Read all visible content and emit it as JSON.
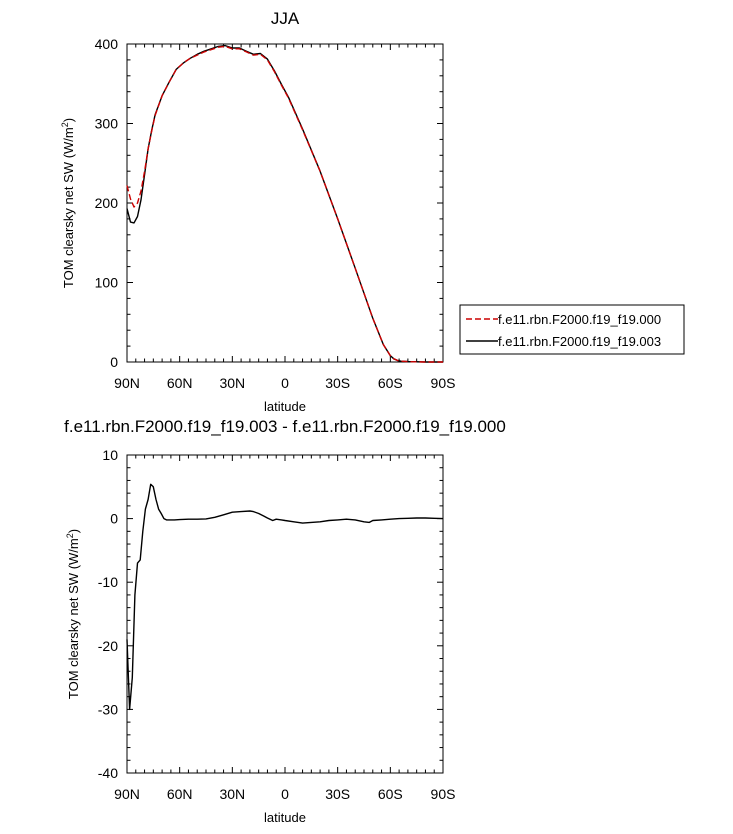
{
  "chart_data": [
    {
      "type": "line",
      "title": "JJA",
      "xlabel": "latitude",
      "ylabel": "TOM clearsky net SW (W/m²)",
      "ylabel_main": "TOM clearsky net SW (W/m",
      "ylabel_sup": "2",
      "ylabel_end": ")",
      "xlim": [
        90,
        -90
      ],
      "ylim": [
        0,
        400
      ],
      "xticks": [
        90,
        60,
        30,
        0,
        -30,
        -60,
        -90
      ],
      "xtick_labels": [
        "90N",
        "60N",
        "30N",
        "0",
        "30S",
        "60S",
        "90S"
      ],
      "yticks": [
        0,
        100,
        200,
        300,
        400
      ],
      "ytick_labels": [
        "0",
        "100",
        "200",
        "300",
        "400"
      ],
      "grid": false,
      "legend_position": "right",
      "series": [
        {
          "name": "f.e11.rbn.F2000.f19_f19.000",
          "color": "#cc0000",
          "dash": "dashed",
          "x": [
            90,
            88,
            86,
            84,
            82,
            80,
            78,
            76,
            74,
            70,
            66,
            62,
            58,
            54,
            50,
            46,
            42,
            38,
            34,
            30,
            26,
            22,
            18,
            14,
            10,
            6,
            2,
            -2,
            -10,
            -20,
            -30,
            -40,
            -50,
            -56,
            -60,
            -62,
            -64,
            -66,
            -70,
            -80,
            -90
          ],
          "y": [
            222,
            205,
            195,
            200,
            215,
            240,
            268,
            290,
            310,
            335,
            352,
            368,
            376,
            382,
            386,
            390,
            393,
            396,
            397,
            394,
            394,
            390,
            386,
            387,
            380,
            365,
            348,
            332,
            292,
            240,
            180,
            118,
            55,
            22,
            8,
            4,
            2,
            1,
            0.5,
            0,
            0
          ]
        },
        {
          "name": "f.e11.rbn.F2000.f19_f19.003",
          "color": "#000000",
          "dash": "solid",
          "x": [
            90,
            88,
            86,
            84,
            82,
            80,
            78,
            76,
            74,
            70,
            66,
            62,
            58,
            54,
            50,
            46,
            42,
            38,
            34,
            30,
            26,
            22,
            18,
            14,
            10,
            6,
            2,
            -2,
            -10,
            -20,
            -30,
            -40,
            -50,
            -56,
            -60,
            -62,
            -64,
            -66,
            -70,
            -80,
            -90
          ],
          "y": [
            193,
            176,
            175,
            183,
            204,
            236,
            268,
            291,
            311,
            335,
            352,
            368,
            376,
            382,
            387,
            391,
            394,
            397,
            398,
            395,
            395,
            391,
            387,
            388,
            381,
            366,
            349,
            333,
            293,
            240,
            180,
            118,
            55,
            22,
            8,
            4,
            2,
            1,
            0.5,
            0,
            0
          ]
        }
      ]
    },
    {
      "type": "line",
      "title": "f.e11.rbn.F2000.f19_f19.003 - f.e11.rbn.F2000.f19_f19.000",
      "xlabel": "latitude",
      "ylabel": "TOM clearsky net SW (W/m²)",
      "ylabel_main": "TOM clearsky net SW (W/m",
      "ylabel_sup": "2",
      "ylabel_end": ")",
      "xlim": [
        90,
        -90
      ],
      "ylim": [
        -40,
        10
      ],
      "xticks": [
        90,
        60,
        30,
        0,
        -30,
        -60,
        -90
      ],
      "xtick_labels": [
        "90N",
        "60N",
        "30N",
        "0",
        "30S",
        "60S",
        "90S"
      ],
      "yticks": [
        -40,
        -30,
        -20,
        -10,
        0,
        10
      ],
      "ytick_labels": [
        "-40",
        "-30",
        "-20",
        "-10",
        "0",
        "10"
      ],
      "grid": false,
      "series": [
        {
          "color": "#000000",
          "x": [
            90,
            88.5,
            87,
            85.5,
            84,
            82.5,
            81,
            79.5,
            78,
            76.5,
            75,
            73.5,
            72,
            70.5,
            69,
            67.5,
            66,
            63,
            60,
            55,
            50,
            45,
            40,
            35,
            30,
            25,
            20,
            18,
            15,
            12,
            10,
            7,
            5,
            2,
            0,
            -5,
            -10,
            -15,
            -20,
            -25,
            -30,
            -35,
            -40,
            -45,
            -48,
            -50,
            -55,
            -60,
            -65,
            -70,
            -75,
            -80,
            -85,
            -90
          ],
          "y": [
            -19,
            -30,
            -25,
            -12,
            -7,
            -6.5,
            -2,
            1.5,
            3,
            5.4,
            5,
            3,
            1.5,
            0.8,
            0,
            -0.2,
            -0.2,
            -0.2,
            -0.15,
            -0.1,
            -0.1,
            -0.05,
            0.2,
            0.6,
            1.0,
            1.1,
            1.2,
            1.1,
            0.8,
            0.4,
            0.1,
            -0.3,
            -0.1,
            -0.2,
            -0.3,
            -0.5,
            -0.7,
            -0.6,
            -0.5,
            -0.3,
            -0.2,
            -0.1,
            -0.2,
            -0.5,
            -0.6,
            -0.3,
            -0.2,
            -0.1,
            0,
            0.05,
            0.1,
            0.1,
            0.05,
            0
          ]
        }
      ]
    }
  ]
}
